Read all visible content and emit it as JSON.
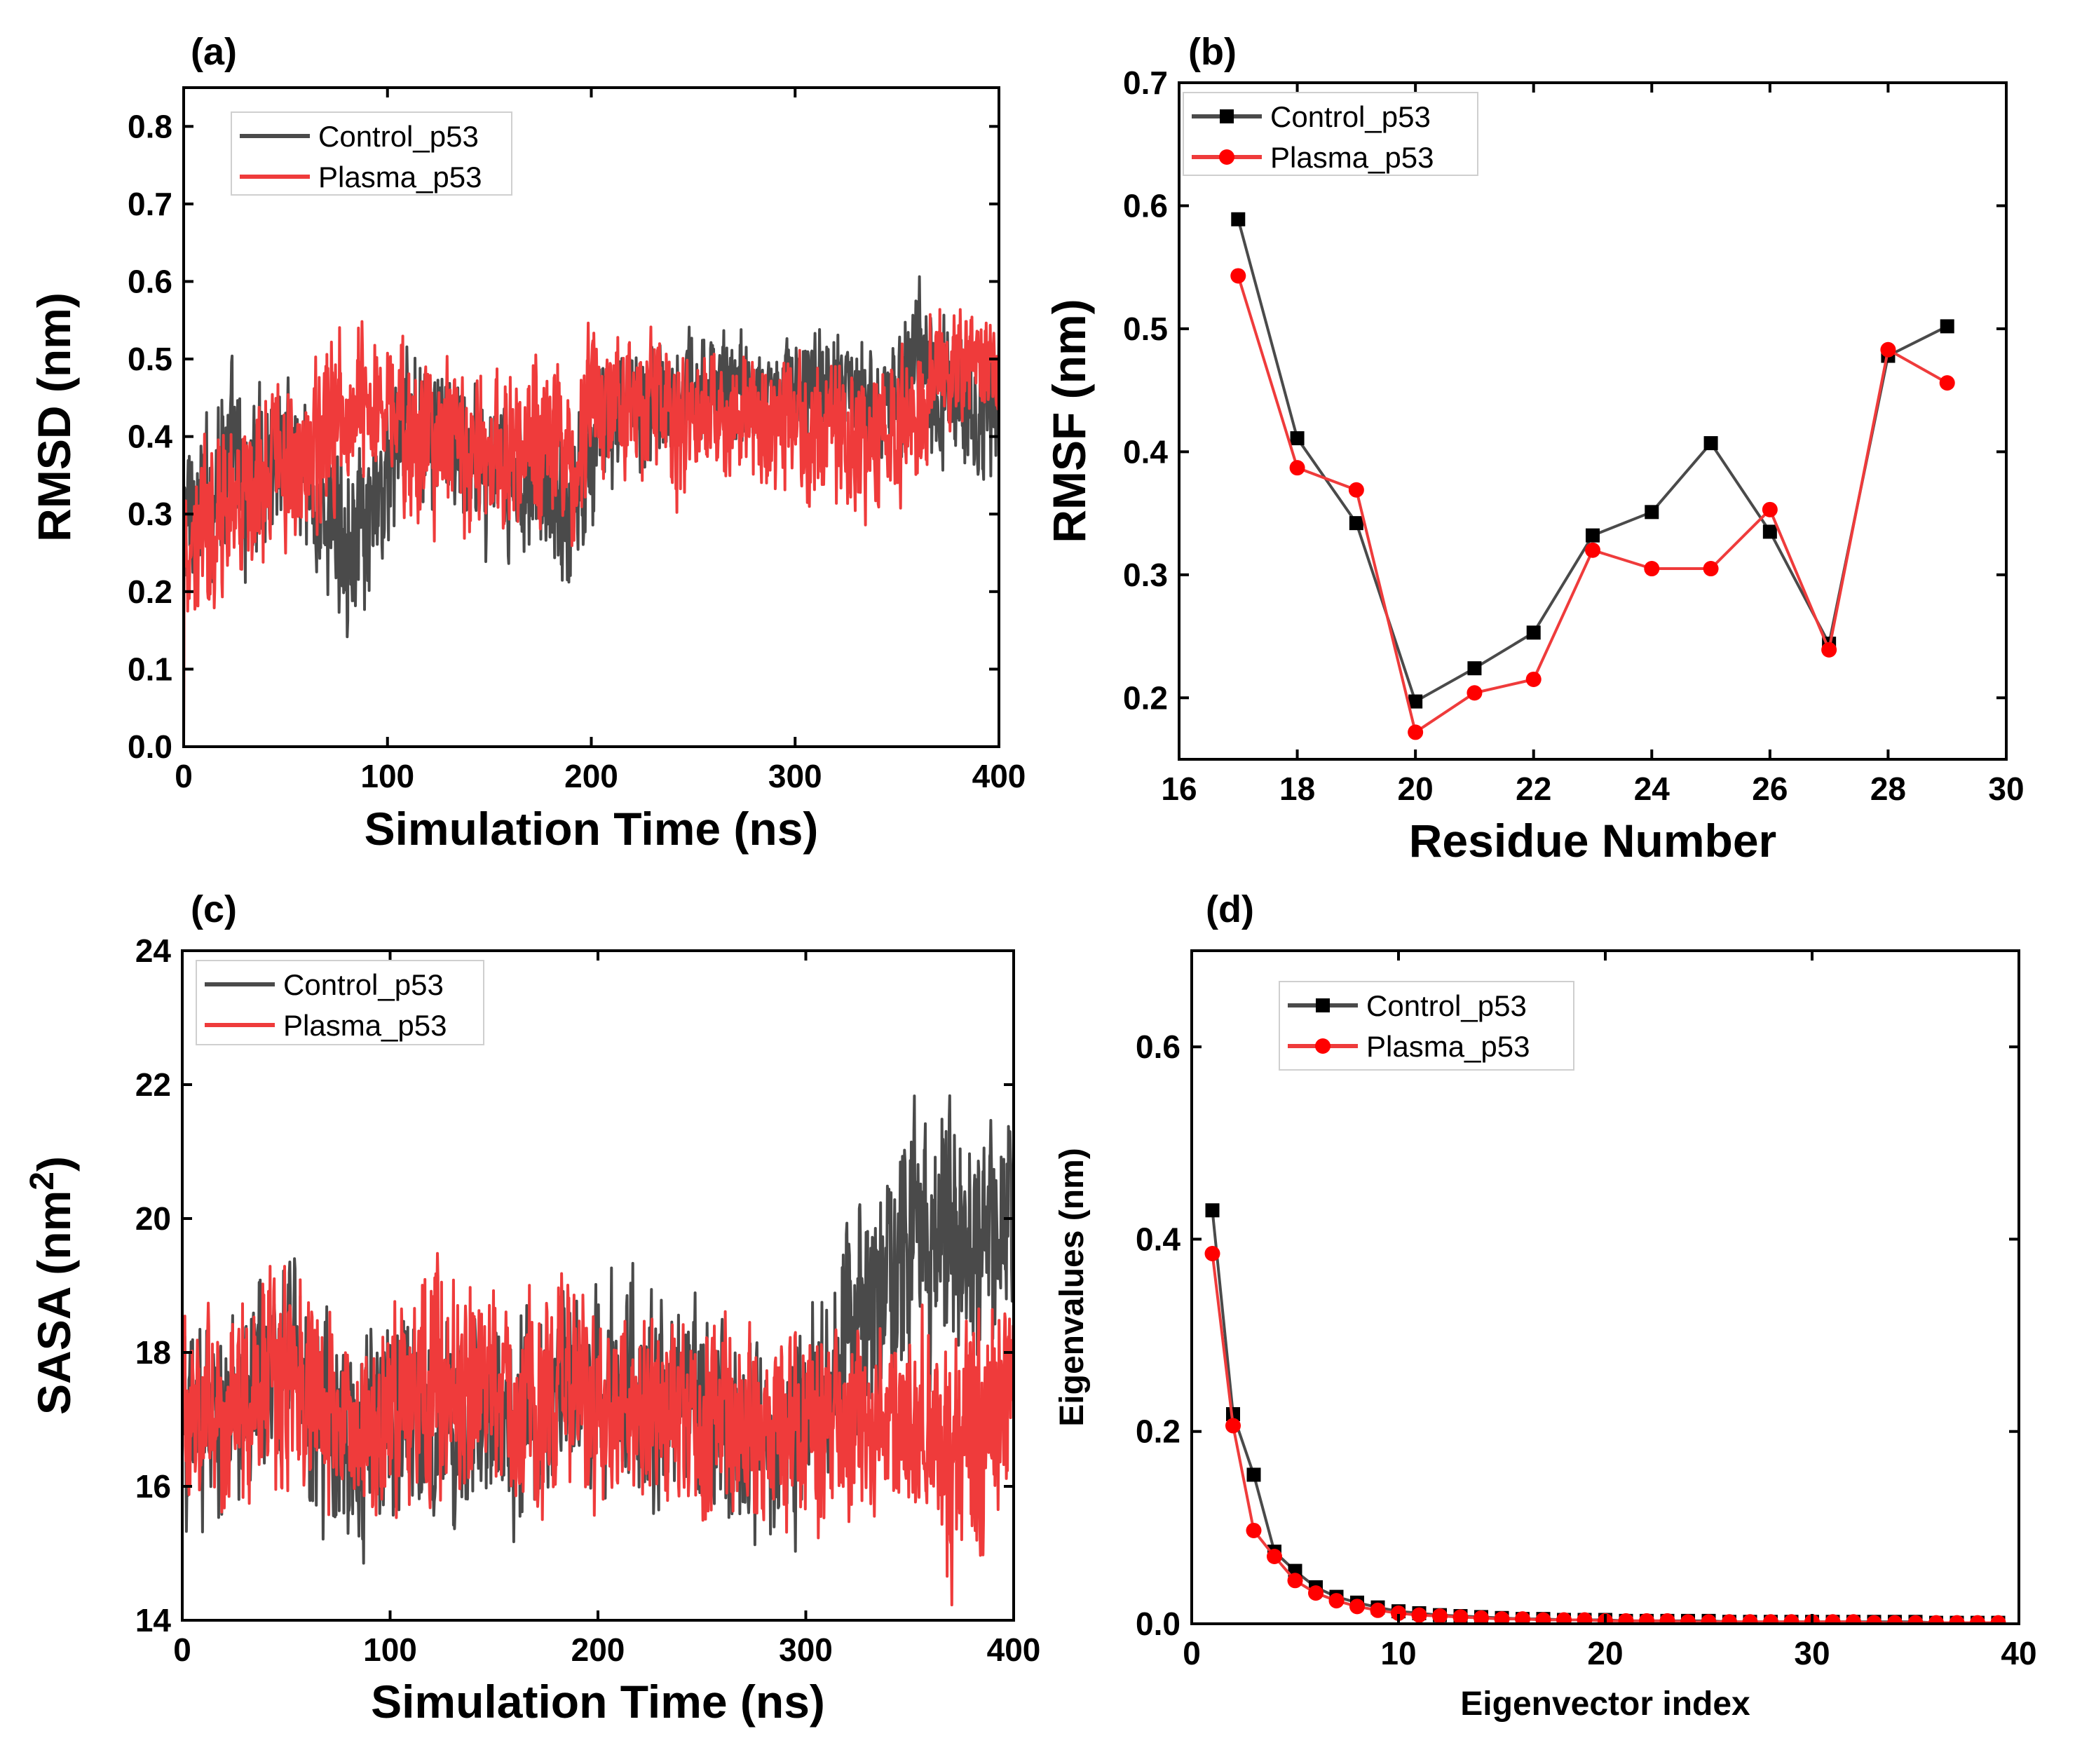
{
  "figure": {
    "name": "p53 MD simulation analysis"
  },
  "colors": {
    "control": "#4a4a4a",
    "plasma": "#ef3b3b",
    "axis": "#000000"
  },
  "chart_data": [
    {
      "id": "a",
      "panel_label": "(a)",
      "type": "line",
      "xlabel": "Simulation Time (ns)",
      "ylabel": "RMSD (nm)",
      "xlim": [
        0,
        400
      ],
      "ylim": [
        0.0,
        0.85
      ],
      "xticks": [
        0,
        100,
        200,
        300,
        400
      ],
      "yticks": [
        0.0,
        0.1,
        0.2,
        0.3,
        0.4,
        0.5,
        0.6,
        0.7,
        0.8
      ],
      "ytick_labels": [
        "0.0",
        "0.1",
        "0.2",
        "0.3",
        "0.4",
        "0.5",
        "0.6",
        "0.7",
        "0.8"
      ],
      "legend": [
        "Control_p53",
        "Plasma_p53"
      ],
      "legend_position": "top-left",
      "series": [
        {
          "name": "Control_p53",
          "color": "control",
          "x": [
            0,
            10,
            20,
            30,
            40,
            50,
            60,
            70,
            80,
            90,
            100,
            110,
            120,
            130,
            140,
            150,
            160,
            170,
            180,
            190,
            200,
            210,
            220,
            230,
            240,
            250,
            260,
            270,
            280,
            290,
            300,
            310,
            320,
            330,
            340,
            350,
            360,
            370,
            380,
            390,
            400
          ],
          "values": [
            0.3,
            0.3,
            0.38,
            0.33,
            0.36,
            0.4,
            0.33,
            0.3,
            0.28,
            0.26,
            0.35,
            0.42,
            0.4,
            0.38,
            0.37,
            0.36,
            0.33,
            0.36,
            0.34,
            0.3,
            0.4,
            0.43,
            0.44,
            0.45,
            0.46,
            0.47,
            0.46,
            0.47,
            0.45,
            0.46,
            0.47,
            0.47,
            0.46,
            0.45,
            0.44,
            0.46,
            0.5,
            0.45,
            0.44,
            0.43,
            0.45
          ],
          "band": [
            0.2,
            0.22,
            0.24,
            0.24,
            0.22,
            0.22,
            0.2,
            0.22,
            0.22,
            0.22,
            0.2,
            0.2,
            0.2,
            0.2,
            0.2,
            0.2,
            0.2,
            0.2,
            0.2,
            0.22,
            0.2,
            0.18,
            0.16,
            0.16,
            0.14,
            0.14,
            0.14,
            0.14,
            0.14,
            0.14,
            0.14,
            0.14,
            0.14,
            0.14,
            0.14,
            0.16,
            0.2,
            0.2,
            0.18,
            0.18,
            0.18
          ]
        },
        {
          "name": "Plasma_p53",
          "color": "plasma",
          "x": [
            0,
            10,
            20,
            30,
            40,
            50,
            60,
            70,
            80,
            90,
            100,
            110,
            120,
            130,
            140,
            150,
            160,
            170,
            180,
            190,
            200,
            210,
            220,
            230,
            240,
            250,
            260,
            270,
            280,
            290,
            300,
            310,
            320,
            330,
            340,
            350,
            360,
            370,
            380,
            390,
            400
          ],
          "values": [
            0.25,
            0.28,
            0.3,
            0.32,
            0.35,
            0.37,
            0.36,
            0.42,
            0.45,
            0.45,
            0.43,
            0.4,
            0.4,
            0.4,
            0.38,
            0.38,
            0.37,
            0.4,
            0.39,
            0.36,
            0.44,
            0.43,
            0.44,
            0.45,
            0.42,
            0.43,
            0.42,
            0.42,
            0.42,
            0.41,
            0.42,
            0.41,
            0.4,
            0.4,
            0.4,
            0.4,
            0.43,
            0.48,
            0.5,
            0.51,
            0.48
          ],
          "band": [
            0.22,
            0.22,
            0.2,
            0.2,
            0.2,
            0.2,
            0.22,
            0.22,
            0.2,
            0.2,
            0.2,
            0.22,
            0.22,
            0.22,
            0.22,
            0.22,
            0.22,
            0.22,
            0.22,
            0.22,
            0.2,
            0.18,
            0.16,
            0.18,
            0.2,
            0.18,
            0.16,
            0.16,
            0.18,
            0.2,
            0.2,
            0.2,
            0.2,
            0.2,
            0.2,
            0.2,
            0.18,
            0.16,
            0.14,
            0.14,
            0.14
          ]
        }
      ]
    },
    {
      "id": "b",
      "panel_label": "(b)",
      "type": "line",
      "xlabel": "Residue Number",
      "ylabel": "RMSF (nm)",
      "xlim": [
        16,
        30
      ],
      "ylim": [
        0.15,
        0.7
      ],
      "xticks": [
        16,
        18,
        20,
        22,
        24,
        26,
        28,
        30
      ],
      "yticks": [
        0.2,
        0.3,
        0.4,
        0.5,
        0.6,
        0.7
      ],
      "ytick_labels": [
        "0.2",
        "0.3",
        "0.4",
        "0.5",
        "0.6",
        "0.7"
      ],
      "legend": [
        "Control_p53",
        "Plasma_p53"
      ],
      "legend_position": "top-left",
      "series": [
        {
          "name": "Control_p53",
          "color": "control",
          "marker": "square",
          "x": [
            17,
            18,
            19,
            20,
            21,
            22,
            23,
            24,
            25,
            26,
            27,
            28,
            29
          ],
          "values": [
            0.589,
            0.411,
            0.342,
            0.197,
            0.224,
            0.253,
            0.332,
            0.351,
            0.407,
            0.335,
            0.244,
            0.478,
            0.502
          ]
        },
        {
          "name": "Plasma_p53",
          "color": "plasma",
          "marker": "circle",
          "x": [
            17,
            18,
            19,
            20,
            21,
            22,
            23,
            24,
            25,
            26,
            27,
            28,
            29
          ],
          "values": [
            0.543,
            0.387,
            0.369,
            0.172,
            0.204,
            0.215,
            0.32,
            0.305,
            0.305,
            0.353,
            0.239,
            0.483,
            0.456
          ]
        }
      ]
    },
    {
      "id": "c",
      "panel_label": "(c)",
      "type": "line",
      "xlabel": "Simulation Time (ns)",
      "ylabel": "SASA (nm",
      "ylabel_sup": "2",
      "ylabel_end": ")",
      "xlim": [
        0,
        400
      ],
      "ylim": [
        14,
        24
      ],
      "xticks": [
        0,
        100,
        200,
        300,
        400
      ],
      "yticks": [
        14,
        16,
        18,
        20,
        22,
        24
      ],
      "ytick_labels": [
        "14",
        "16",
        "18",
        "20",
        "22",
        "24"
      ],
      "legend": [
        "Control_p53",
        "Plasma_p53"
      ],
      "legend_position": "top-left",
      "series": [
        {
          "name": "Control_p53",
          "color": "control",
          "x": [
            0,
            10,
            20,
            30,
            40,
            50,
            60,
            70,
            80,
            90,
            100,
            110,
            120,
            130,
            140,
            150,
            160,
            170,
            180,
            190,
            200,
            210,
            220,
            230,
            240,
            250,
            260,
            270,
            280,
            290,
            300,
            310,
            320,
            330,
            340,
            350,
            360,
            370,
            380,
            390,
            400
          ],
          "values": [
            17,
            17,
            17,
            17.4,
            17.8,
            17.8,
            17.4,
            16.8,
            16.6,
            16.8,
            17.2,
            17,
            16.8,
            16.8,
            17,
            17.2,
            17,
            17,
            17.4,
            17.4,
            17.4,
            17.6,
            17.4,
            17.4,
            17.4,
            17.2,
            16.8,
            16.6,
            16.6,
            16.6,
            16.8,
            17.6,
            18.4,
            18.6,
            19.2,
            20,
            19.8,
            19.6,
            19.8,
            19.8,
            20
          ],
          "band": [
            3,
            3,
            3,
            3,
            3.2,
            3.4,
            3.4,
            3.2,
            3.2,
            3.4,
            3.2,
            3,
            3,
            3,
            3,
            3,
            3,
            3,
            3,
            3,
            3,
            3,
            3.2,
            3,
            3,
            3,
            3,
            2.8,
            2.8,
            2.8,
            3,
            3.4,
            3.4,
            3.6,
            3.8,
            3.8,
            3.8,
            3.6,
            3.6,
            3.6,
            3.6
          ]
        },
        {
          "name": "Plasma_p53",
          "color": "plasma",
          "x": [
            0,
            10,
            20,
            30,
            40,
            50,
            60,
            70,
            80,
            90,
            100,
            110,
            120,
            130,
            140,
            150,
            160,
            170,
            180,
            190,
            200,
            210,
            220,
            230,
            240,
            250,
            260,
            270,
            280,
            290,
            300,
            310,
            320,
            330,
            340,
            350,
            360,
            370,
            380,
            390,
            400
          ],
          "values": [
            17,
            17,
            17,
            17.2,
            17.6,
            17.8,
            17.6,
            17,
            16.8,
            16.8,
            17,
            17.2,
            17.4,
            17.6,
            17.4,
            17.2,
            17.2,
            17.2,
            17.4,
            17.6,
            17.2,
            17.2,
            17,
            17,
            17,
            16.8,
            16.8,
            16.8,
            16.6,
            16.8,
            16.8,
            17,
            17.2,
            17,
            17,
            17,
            16.8,
            16.4,
            16.6,
            17,
            17.2
          ],
          "band": [
            3,
            3,
            3,
            3.2,
            3.4,
            3.6,
            3.2,
            3,
            3,
            3,
            3.2,
            3.2,
            3.4,
            3.6,
            3.2,
            3.2,
            3.2,
            3.2,
            3.2,
            3.2,
            3,
            3,
            3,
            3,
            3,
            3,
            3,
            3,
            2.8,
            2.8,
            3,
            3,
            3,
            3,
            3,
            3,
            3,
            3.4,
            3.6,
            3.4,
            3.2
          ]
        }
      ]
    },
    {
      "id": "d",
      "panel_label": "(d)",
      "type": "line",
      "xlabel": "Eigenvector index",
      "ylabel": "Eigenvalues (nm)",
      "xlim": [
        0,
        40
      ],
      "ylim": [
        0.0,
        0.7
      ],
      "xticks": [
        0,
        10,
        20,
        30,
        40
      ],
      "yticks": [
        0.0,
        0.2,
        0.4,
        0.6
      ],
      "ytick_labels": [
        "0.0",
        "0.2",
        "0.4",
        "0.6"
      ],
      "legend": [
        "Control_p53",
        "Plasma_p53"
      ],
      "legend_position": "top-left",
      "series": [
        {
          "name": "Control_p53",
          "color": "control",
          "marker": "square",
          "x": [
            1,
            2,
            3,
            4,
            5,
            6,
            7,
            8,
            9,
            10,
            11,
            12,
            13,
            14,
            15,
            16,
            17,
            18,
            19,
            20,
            21,
            22,
            23,
            24,
            25,
            26,
            27,
            28,
            29,
            30,
            31,
            32,
            33,
            34,
            35,
            36,
            37,
            38,
            39
          ],
          "values": [
            0.43,
            0.218,
            0.155,
            0.075,
            0.055,
            0.038,
            0.028,
            0.022,
            0.017,
            0.013,
            0.011,
            0.009,
            0.008,
            0.007,
            0.006,
            0.005,
            0.005,
            0.004,
            0.004,
            0.004,
            0.003,
            0.003,
            0.003,
            0.003,
            0.003,
            0.002,
            0.002,
            0.002,
            0.002,
            0.002,
            0.002,
            0.002,
            0.002,
            0.002,
            0.002,
            0.001,
            0.001,
            0.001,
            0.001
          ]
        },
        {
          "name": "Plasma_p53",
          "color": "plasma",
          "marker": "circle",
          "x": [
            1,
            2,
            3,
            4,
            5,
            6,
            7,
            8,
            9,
            10,
            11,
            12,
            13,
            14,
            15,
            16,
            17,
            18,
            19,
            20,
            21,
            22,
            23,
            24,
            25,
            26,
            27,
            28,
            29,
            30,
            31,
            32,
            33,
            34,
            35,
            36,
            37,
            38,
            39
          ],
          "values": [
            0.385,
            0.206,
            0.097,
            0.07,
            0.045,
            0.032,
            0.024,
            0.018,
            0.014,
            0.011,
            0.009,
            0.008,
            0.007,
            0.006,
            0.005,
            0.005,
            0.004,
            0.004,
            0.004,
            0.003,
            0.003,
            0.003,
            0.003,
            0.002,
            0.002,
            0.002,
            0.002,
            0.002,
            0.002,
            0.002,
            0.002,
            0.002,
            0.001,
            0.001,
            0.001,
            0.001,
            0.001,
            0.001,
            0.001
          ]
        }
      ]
    }
  ]
}
